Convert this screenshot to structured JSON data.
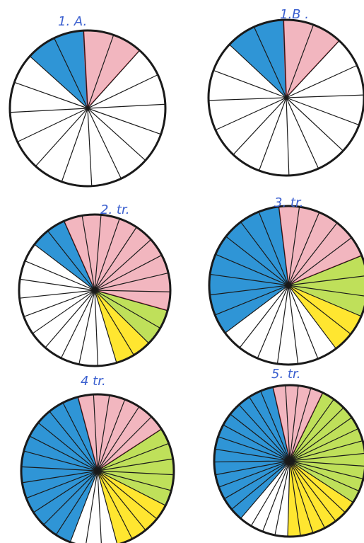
{
  "colors": {
    "blue": "#2f95d6",
    "red": "#f2b6bf",
    "red_edge": "#d9404e",
    "green": "#bfe05a",
    "yellow": "#ffe630",
    "white": "#ffffff",
    "ink": "#1a1a1a",
    "label": "#3a5fcf"
  },
  "pies": [
    {
      "label": "1. A.",
      "segments": [
        {
          "color": "blue",
          "count": 2
        },
        {
          "color": "red",
          "count": 2
        },
        {
          "color": "white",
          "count": 12
        }
      ]
    },
    {
      "label": "1.B .",
      "segments": [
        {
          "color": "blue",
          "count": 2
        },
        {
          "color": "red",
          "count": 2
        },
        {
          "color": "white",
          "count": 12
        }
      ]
    },
    {
      "label": "2. tr.",
      "segments": [
        {
          "color": "red",
          "count": 9
        },
        {
          "color": "green",
          "count": 2
        },
        {
          "color": "yellow",
          "count": 2
        },
        {
          "color": "white",
          "count": 10
        },
        {
          "color": "blue",
          "count": 2
        }
      ]
    },
    {
      "label": "3. tr.",
      "segments": [
        {
          "color": "red",
          "count": 5
        },
        {
          "color": "green",
          "count": 3
        },
        {
          "color": "yellow",
          "count": 2
        },
        {
          "color": "white",
          "count": 6
        },
        {
          "color": "blue",
          "count": 8
        }
      ]
    },
    {
      "label": "4 tr.",
      "segments": [
        {
          "color": "red",
          "count": 6
        },
        {
          "color": "green",
          "count": 5
        },
        {
          "color": "yellow",
          "count": 4
        },
        {
          "color": "white",
          "count": 3
        },
        {
          "color": "blue",
          "count": 12
        }
      ]
    },
    {
      "label": "5. tr.",
      "segments": [
        {
          "color": "red",
          "count": 4
        },
        {
          "color": "green",
          "count": 10
        },
        {
          "color": "yellow",
          "count": 6
        },
        {
          "color": "white",
          "count": 4
        },
        {
          "color": "blue",
          "count": 13
        }
      ]
    }
  ]
}
